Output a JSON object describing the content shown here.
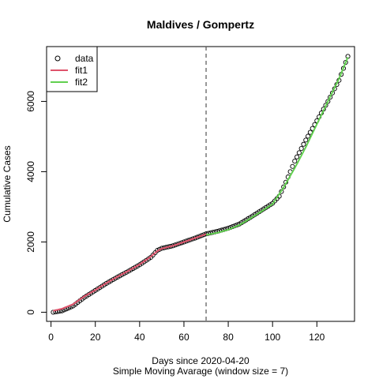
{
  "chart_data": {
    "type": "scatter",
    "title": "Maldives / Gompertz",
    "xlabel": "Days since 2020-04-20",
    "subtitle": "Simple Moving Avarage (window size = 7)",
    "ylabel": "Cumulative Cases",
    "xlim": [
      -2,
      137
    ],
    "ylim": [
      -260,
      7560
    ],
    "xticks": [
      "0",
      "20",
      "40",
      "60",
      "80",
      "100",
      "120"
    ],
    "yticks": [
      "0",
      "2000",
      "4000",
      "6000"
    ],
    "vline_x": 70,
    "legend": {
      "position": "top-left",
      "entries": [
        {
          "label": "data",
          "kind": "point",
          "color": "#000000"
        },
        {
          "label": "fit1",
          "kind": "line",
          "color": "#DF536B"
        },
        {
          "label": "fit2",
          "kind": "line",
          "color": "#61D04F"
        }
      ]
    },
    "data_x_range": [
      1,
      134
    ],
    "data_anchors": [
      [
        1,
        0
      ],
      [
        5,
        40
      ],
      [
        10,
        180
      ],
      [
        15,
        420
      ],
      [
        20,
        620
      ],
      [
        25,
        820
      ],
      [
        30,
        1000
      ],
      [
        35,
        1170
      ],
      [
        40,
        1350
      ],
      [
        45,
        1560
      ],
      [
        48,
        1760
      ],
      [
        50,
        1820
      ],
      [
        55,
        1890
      ],
      [
        60,
        2000
      ],
      [
        65,
        2110
      ],
      [
        70,
        2230
      ],
      [
        75,
        2300
      ],
      [
        80,
        2390
      ],
      [
        85,
        2510
      ],
      [
        90,
        2700
      ],
      [
        95,
        2900
      ],
      [
        100,
        3100
      ],
      [
        103,
        3300
      ],
      [
        106,
        3700
      ],
      [
        110,
        4300
      ],
      [
        115,
        4900
      ],
      [
        120,
        5450
      ],
      [
        125,
        6000
      ],
      [
        130,
        6600
      ],
      [
        134,
        7280
      ]
    ],
    "series": [
      {
        "name": "fit1",
        "color": "#DF536B",
        "x_range": [
          1,
          70
        ],
        "points": [
          [
            1,
            40
          ],
          [
            5,
            100
          ],
          [
            10,
            230
          ],
          [
            15,
            450
          ],
          [
            20,
            630
          ],
          [
            25,
            830
          ],
          [
            30,
            1010
          ],
          [
            35,
            1180
          ],
          [
            40,
            1360
          ],
          [
            45,
            1580
          ],
          [
            48,
            1740
          ],
          [
            50,
            1810
          ],
          [
            55,
            1890
          ],
          [
            60,
            2000
          ],
          [
            65,
            2110
          ],
          [
            70,
            2220
          ]
        ]
      },
      {
        "name": "fit2",
        "color": "#61D04F",
        "x_range": [
          70,
          134
        ],
        "points": [
          [
            70,
            2200
          ],
          [
            75,
            2260
          ],
          [
            80,
            2350
          ],
          [
            85,
            2480
          ],
          [
            90,
            2670
          ],
          [
            95,
            2870
          ],
          [
            100,
            3080
          ],
          [
            105,
            3550
          ],
          [
            110,
            4100
          ],
          [
            115,
            4700
          ],
          [
            120,
            5350
          ],
          [
            125,
            6000
          ],
          [
            130,
            6650
          ],
          [
            134,
            7260
          ]
        ]
      }
    ]
  }
}
